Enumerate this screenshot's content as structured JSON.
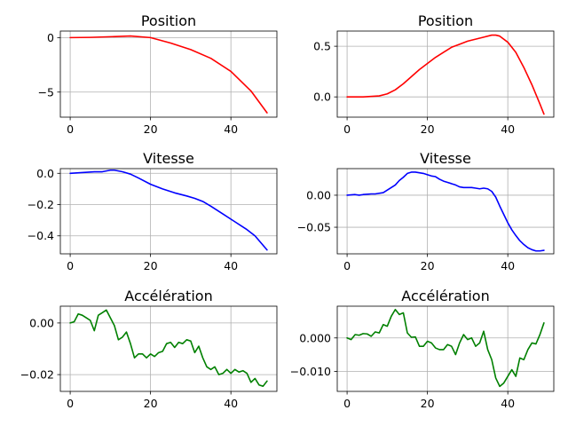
{
  "chart_data": [
    {
      "type": "line",
      "title": "Position",
      "xlabel": "",
      "ylabel": "",
      "xlim": [
        -2.45,
        51.45
      ],
      "ylim": [
        -7.3,
        0.6
      ],
      "xticks": [
        0,
        20,
        40
      ],
      "xtick_labels": [
        "0",
        "20",
        "40"
      ],
      "yticks": [
        0,
        -5
      ],
      "ytick_labels": [
        "0",
        "−5"
      ],
      "grid": true,
      "color": "#ff0000",
      "x": [
        0,
        5,
        10,
        15,
        20,
        25,
        30,
        35,
        40,
        45,
        49
      ],
      "y": [
        0.0,
        0.02,
        0.08,
        0.15,
        0.0,
        -0.5,
        -1.1,
        -1.9,
        -3.1,
        -4.9,
        -6.9
      ]
    },
    {
      "type": "line",
      "title": "Position",
      "xlabel": "",
      "ylabel": "",
      "xlim": [
        -2.45,
        51.45
      ],
      "ylim": [
        -0.2,
        0.65
      ],
      "xticks": [
        0,
        20,
        40
      ],
      "xtick_labels": [
        "0",
        "20",
        "40"
      ],
      "yticks": [
        0.5,
        0.0
      ],
      "ytick_labels": [
        "0.5",
        "0.0"
      ],
      "grid": true,
      "color": "#ff0000",
      "x": [
        0,
        4,
        8,
        10,
        12,
        14,
        16,
        18,
        20,
        22,
        24,
        26,
        28,
        30,
        32,
        34,
        36,
        37,
        38,
        40,
        42,
        44,
        46,
        48,
        49
      ],
      "y": [
        0.0,
        0.0,
        0.01,
        0.03,
        0.07,
        0.13,
        0.2,
        0.27,
        0.33,
        0.39,
        0.44,
        0.49,
        0.52,
        0.55,
        0.57,
        0.59,
        0.61,
        0.61,
        0.6,
        0.54,
        0.44,
        0.29,
        0.12,
        -0.07,
        -0.17
      ]
    },
    {
      "type": "line",
      "title": "Vitesse",
      "xlabel": "",
      "ylabel": "",
      "xlim": [
        -2.45,
        51.45
      ],
      "ylim": [
        -0.515,
        0.03
      ],
      "xticks": [
        0,
        20,
        40
      ],
      "xtick_labels": [
        "0",
        "20",
        "40"
      ],
      "yticks": [
        0.0,
        -0.2,
        -0.4
      ],
      "ytick_labels": [
        "0.0",
        "−0.2",
        "−0.4"
      ],
      "grid": true,
      "color": "#0000ff",
      "x": [
        0,
        3,
        6,
        8,
        10,
        11,
        13,
        15,
        17,
        20,
        23,
        26,
        29,
        31,
        33,
        35,
        38,
        41,
        44,
        46,
        49
      ],
      "y": [
        0.0,
        0.005,
        0.01,
        0.01,
        0.02,
        0.02,
        0.01,
        -0.005,
        -0.03,
        -0.07,
        -0.1,
        -0.125,
        -0.145,
        -0.16,
        -0.18,
        -0.21,
        -0.26,
        -0.31,
        -0.36,
        -0.4,
        -0.49
      ]
    },
    {
      "type": "line",
      "title": "Vitesse",
      "xlabel": "",
      "ylabel": "",
      "xlim": [
        -2.45,
        51.45
      ],
      "ylim": [
        -0.0915,
        0.0415
      ],
      "xticks": [
        0,
        20,
        40
      ],
      "xtick_labels": [
        "0",
        "20",
        "40"
      ],
      "yticks": [
        0.0,
        -0.05
      ],
      "ytick_labels": [
        "0.00",
        "−0.05"
      ],
      "grid": true,
      "color": "#0000ff",
      "x": [
        0,
        2,
        3,
        4,
        6,
        7,
        9,
        10,
        12,
        13,
        14,
        15,
        16,
        17,
        18,
        19,
        20,
        21,
        22,
        23,
        24,
        25,
        26,
        27,
        28,
        29,
        30,
        31,
        32,
        33,
        34,
        35,
        36,
        37,
        38,
        39,
        40,
        41,
        42,
        43,
        44,
        45,
        46,
        47,
        48,
        49
      ],
      "y": [
        0.0,
        0.001,
        0.0,
        0.001,
        0.002,
        0.002,
        0.004,
        0.008,
        0.016,
        0.023,
        0.028,
        0.034,
        0.036,
        0.036,
        0.035,
        0.034,
        0.032,
        0.03,
        0.029,
        0.025,
        0.022,
        0.02,
        0.018,
        0.016,
        0.013,
        0.012,
        0.012,
        0.012,
        0.011,
        0.01,
        0.011,
        0.01,
        0.006,
        -0.003,
        -0.017,
        -0.03,
        -0.043,
        -0.054,
        -0.063,
        -0.071,
        -0.077,
        -0.082,
        -0.085,
        -0.087,
        -0.087,
        -0.086
      ]
    },
    {
      "type": "line",
      "title": "Accélération",
      "xlabel": "",
      "ylabel": "",
      "xlim": [
        -2.45,
        51.45
      ],
      "ylim": [
        -0.0265,
        0.0065
      ],
      "xticks": [
        0,
        20,
        40
      ],
      "xtick_labels": [
        "0",
        "20",
        "40"
      ],
      "yticks": [
        0.0,
        -0.02
      ],
      "ytick_labels": [
        "0.00",
        "−0.02"
      ],
      "grid": true,
      "color": "#008000",
      "x": [
        0,
        1,
        2,
        3,
        4,
        5,
        6,
        7,
        8,
        9,
        10,
        11,
        12,
        13,
        14,
        15,
        16,
        17,
        18,
        19,
        20,
        21,
        22,
        23,
        24,
        25,
        26,
        27,
        28,
        29,
        30,
        31,
        32,
        33,
        34,
        35,
        36,
        37,
        38,
        39,
        40,
        41,
        42,
        43,
        44,
        45,
        46,
        47,
        48,
        49
      ],
      "y": [
        0.0,
        0.0005,
        0.0035,
        0.003,
        0.002,
        0.001,
        -0.003,
        0.003,
        0.004,
        0.005,
        0.002,
        -0.001,
        -0.0065,
        -0.0055,
        -0.0035,
        -0.008,
        -0.0135,
        -0.012,
        -0.012,
        -0.0135,
        -0.012,
        -0.013,
        -0.0115,
        -0.011,
        -0.008,
        -0.0075,
        -0.0095,
        -0.0075,
        -0.008,
        -0.0065,
        -0.007,
        -0.0115,
        -0.009,
        -0.0135,
        -0.017,
        -0.018,
        -0.017,
        -0.02,
        -0.0195,
        -0.018,
        -0.0195,
        -0.018,
        -0.019,
        -0.0185,
        -0.0195,
        -0.023,
        -0.0215,
        -0.024,
        -0.0245,
        -0.0225
      ]
    },
    {
      "type": "line",
      "title": "Accélération",
      "xlabel": "",
      "ylabel": "",
      "xlim": [
        -2.45,
        51.45
      ],
      "ylim": [
        -0.016,
        0.0095
      ],
      "xticks": [
        0,
        20,
        40
      ],
      "xtick_labels": [
        "0",
        "20",
        "40"
      ],
      "yticks": [
        0.0,
        -0.01
      ],
      "ytick_labels": [
        "0.000",
        "−0.010"
      ],
      "grid": true,
      "color": "#008000",
      "x": [
        0,
        1,
        2,
        3,
        4,
        5,
        6,
        7,
        8,
        9,
        10,
        11,
        12,
        13,
        14,
        15,
        16,
        17,
        18,
        19,
        20,
        21,
        22,
        23,
        24,
        25,
        26,
        27,
        28,
        29,
        30,
        31,
        32,
        33,
        34,
        35,
        36,
        37,
        38,
        39,
        40,
        41,
        42,
        43,
        44,
        45,
        46,
        47,
        48,
        49
      ],
      "y": [
        0.0,
        -0.0005,
        0.001,
        0.0008,
        0.0013,
        0.0012,
        0.0005,
        0.0018,
        0.0015,
        0.004,
        0.0035,
        0.0065,
        0.0085,
        0.007,
        0.0075,
        0.0015,
        0.0002,
        0.0003,
        -0.0025,
        -0.0025,
        -0.001,
        -0.0015,
        -0.003,
        -0.0035,
        -0.0035,
        -0.002,
        -0.0025,
        -0.005,
        -0.0015,
        0.001,
        -0.0005,
        0.0,
        -0.0025,
        -0.0015,
        0.002,
        -0.0035,
        -0.0065,
        -0.012,
        -0.0145,
        -0.0135,
        -0.0115,
        -0.0095,
        -0.0115,
        -0.006,
        -0.0065,
        -0.0035,
        -0.0015,
        -0.0018,
        0.001,
        0.0045
      ]
    }
  ]
}
